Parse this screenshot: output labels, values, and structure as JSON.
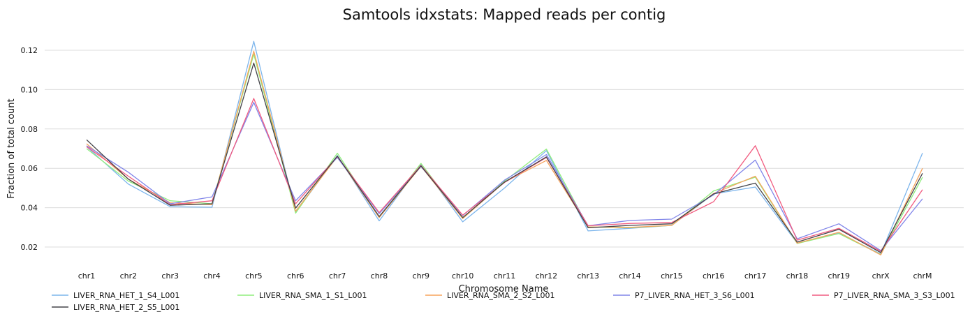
{
  "chart_data": {
    "type": "line",
    "title": "Samtools idxstats: Mapped reads per contig",
    "xlabel": "Chromosome Name",
    "ylabel": "Fraction of total count",
    "ylim": [
      0.01,
      0.13
    ],
    "yticks": [
      0.02,
      0.04,
      0.06,
      0.08,
      0.1,
      0.12
    ],
    "ytick_labels": [
      "0.02",
      "0.04",
      "0.06",
      "0.08",
      "0.10",
      "0.12"
    ],
    "grid": true,
    "legend_position": "bottom",
    "categories": [
      "chr1",
      "chr2",
      "chr3",
      "chr4",
      "chr5",
      "chr6",
      "chr7",
      "chr8",
      "chr9",
      "chr10",
      "chr11",
      "chr12",
      "chr13",
      "chr14",
      "chr15",
      "chr16",
      "chr17",
      "chr18",
      "chr19",
      "chrX",
      "chrM"
    ],
    "series": [
      {
        "name": "LIVER_RNA_HET_1_S4_L001",
        "color": "#7cb5ec",
        "values": [
          0.071,
          0.052,
          0.0405,
          0.0402,
          0.1245,
          0.0375,
          0.0665,
          0.0333,
          0.062,
          0.0328,
          0.05,
          0.069,
          0.0282,
          0.0295,
          0.031,
          0.047,
          0.0505,
          0.022,
          0.027,
          0.0165,
          0.0678
        ]
      },
      {
        "name": "LIVER_RNA_SMA_1_S1_L001",
        "color": "#90ed7d",
        "values": [
          0.07,
          0.0535,
          0.0435,
          0.042,
          0.118,
          0.0372,
          0.0677,
          0.035,
          0.0625,
          0.0345,
          0.0535,
          0.0698,
          0.0302,
          0.0298,
          0.031,
          0.0485,
          0.0555,
          0.0218,
          0.0268,
          0.0162,
          0.0555
        ]
      },
      {
        "name": "LIVER_RNA_SMA_2_S2_L001",
        "color": "#f7a35c",
        "values": [
          0.0725,
          0.0545,
          0.0425,
          0.0415,
          0.1195,
          0.0382,
          0.066,
          0.035,
          0.061,
          0.0345,
          0.053,
          0.064,
          0.0302,
          0.03,
          0.031,
          0.0472,
          0.056,
          0.022,
          0.0275,
          0.016,
          0.06
        ]
      },
      {
        "name": "P7_LIVER_RNA_HET_3_S6_L001",
        "color": "#8085e9",
        "values": [
          0.0715,
          0.058,
          0.042,
          0.0455,
          0.0935,
          0.0435,
          0.0655,
          0.037,
          0.061,
          0.036,
          0.054,
          0.067,
          0.0308,
          0.0335,
          0.0342,
          0.0465,
          0.0642,
          0.0242,
          0.0318,
          0.0182,
          0.0445
        ]
      },
      {
        "name": "P7_LIVER_RNA_SMA_3_S3_L001",
        "color": "#f15c80",
        "values": [
          0.071,
          0.056,
          0.0415,
          0.0435,
          0.0955,
          0.042,
          0.066,
          0.0375,
          0.0615,
          0.0362,
          0.0528,
          0.0655,
          0.0308,
          0.032,
          0.0325,
          0.043,
          0.0715,
          0.0235,
          0.0295,
          0.0178,
          0.0492
        ]
      },
      {
        "name": "LIVER_RNA_HET_2_S5_L001",
        "color": "#434348",
        "values": [
          0.0745,
          0.0545,
          0.0412,
          0.042,
          0.1135,
          0.0398,
          0.0662,
          0.0355,
          0.0612,
          0.035,
          0.053,
          0.0658,
          0.0298,
          0.031,
          0.0318,
          0.047,
          0.0525,
          0.0225,
          0.029,
          0.0172,
          0.0575
        ]
      }
    ]
  }
}
